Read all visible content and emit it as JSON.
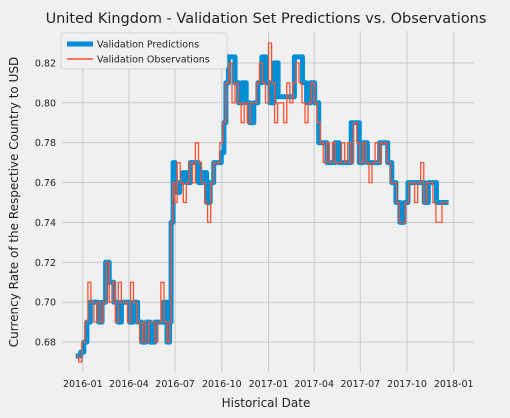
{
  "chart_data": {
    "type": "line",
    "title": "United Kingdom - Validation Set Predictions vs. Observations",
    "xlabel": "Historical Date",
    "ylabel": "Currency Rate of the Respective Country to USD",
    "xlim": [
      "2015-11-21",
      "2018-02-10"
    ],
    "ylim": [
      0.665,
      0.836
    ],
    "x_ticks": [
      "2016-01",
      "2016-04",
      "2016-07",
      "2016-10",
      "2017-01",
      "2017-04",
      "2017-07",
      "2017-10",
      "2018-01"
    ],
    "y_ticks": [
      0.68,
      0.7,
      0.72,
      0.74,
      0.76,
      0.78,
      0.8,
      0.82
    ],
    "grid": true,
    "legend": "top-left",
    "series": [
      {
        "name": "Validation Predictions",
        "color": "#008fd5",
        "x": [
          "2015-12-18",
          "2015-12-28",
          "2016-01-03",
          "2016-01-09",
          "2016-01-16",
          "2016-01-24",
          "2016-02-01",
          "2016-02-08",
          "2016-02-15",
          "2016-02-22",
          "2016-03-02",
          "2016-03-10",
          "2016-03-17",
          "2016-03-25",
          "2016-04-02",
          "2016-04-10",
          "2016-04-18",
          "2016-04-26",
          "2016-05-05",
          "2016-05-13",
          "2016-05-22",
          "2016-05-31",
          "2016-06-08",
          "2016-06-15",
          "2016-06-20",
          "2016-06-23",
          "2016-06-27",
          "2016-07-01",
          "2016-07-05",
          "2016-07-10",
          "2016-07-16",
          "2016-07-23",
          "2016-07-31",
          "2016-08-08",
          "2016-08-16",
          "2016-08-24",
          "2016-09-01",
          "2016-09-08",
          "2016-09-15",
          "2016-09-22",
          "2016-09-30",
          "2016-10-05",
          "2016-10-09",
          "2016-10-14",
          "2016-10-20",
          "2016-10-27",
          "2016-11-03",
          "2016-11-10",
          "2016-11-18",
          "2016-11-25",
          "2016-12-03",
          "2016-12-11",
          "2016-12-19",
          "2016-12-27",
          "2017-01-04",
          "2017-01-12",
          "2017-01-20",
          "2017-01-28",
          "2017-02-05",
          "2017-02-13",
          "2017-02-21",
          "2017-03-01",
          "2017-03-09",
          "2017-03-17",
          "2017-03-25",
          "2017-04-02",
          "2017-04-10",
          "2017-04-18",
          "2017-04-26",
          "2017-05-04",
          "2017-05-12",
          "2017-05-20",
          "2017-05-28",
          "2017-06-05",
          "2017-06-13",
          "2017-06-21",
          "2017-06-29",
          "2017-07-07",
          "2017-07-15",
          "2017-07-23",
          "2017-07-31",
          "2017-08-08",
          "2017-08-16",
          "2017-08-24",
          "2017-09-01",
          "2017-09-09",
          "2017-09-17",
          "2017-09-25",
          "2017-10-03",
          "2017-10-11",
          "2017-10-19",
          "2017-10-27",
          "2017-11-04",
          "2017-11-12",
          "2017-11-20",
          "2017-11-28",
          "2017-12-06",
          "2017-12-14",
          "2017-12-22"
        ],
        "y": [
          0.673,
          0.675,
          0.68,
          0.69,
          0.7,
          0.7,
          0.69,
          0.7,
          0.72,
          0.71,
          0.7,
          0.69,
          0.7,
          0.7,
          0.69,
          0.7,
          0.69,
          0.68,
          0.69,
          0.68,
          0.69,
          0.69,
          0.7,
          0.68,
          0.69,
          0.74,
          0.77,
          0.76,
          0.755,
          0.76,
          0.765,
          0.76,
          0.77,
          0.77,
          0.76,
          0.765,
          0.75,
          0.76,
          0.77,
          0.77,
          0.775,
          0.79,
          0.81,
          0.823,
          0.823,
          0.81,
          0.8,
          0.81,
          0.8,
          0.79,
          0.8,
          0.81,
          0.823,
          0.81,
          0.8,
          0.82,
          0.803,
          0.803,
          0.803,
          0.803,
          0.823,
          0.823,
          0.81,
          0.8,
          0.81,
          0.8,
          0.78,
          0.78,
          0.77,
          0.77,
          0.78,
          0.77,
          0.77,
          0.77,
          0.79,
          0.79,
          0.77,
          0.78,
          0.77,
          0.77,
          0.77,
          0.78,
          0.78,
          0.77,
          0.76,
          0.75,
          0.74,
          0.75,
          0.76,
          0.76,
          0.76,
          0.76,
          0.75,
          0.76,
          0.76,
          0.75,
          0.75,
          0.75,
          0.75
        ]
      },
      {
        "name": "Validation Observations",
        "color": "#fc4f30",
        "x": [
          "2015-12-18",
          "2015-12-24",
          "2015-12-30",
          "2016-01-05",
          "2016-01-11",
          "2016-01-17",
          "2016-01-23",
          "2016-01-29",
          "2016-02-04",
          "2016-02-10",
          "2016-02-16",
          "2016-02-22",
          "2016-02-28",
          "2016-03-05",
          "2016-03-11",
          "2016-03-17",
          "2016-03-23",
          "2016-03-29",
          "2016-04-04",
          "2016-04-10",
          "2016-04-16",
          "2016-04-22",
          "2016-04-28",
          "2016-05-04",
          "2016-05-10",
          "2016-05-16",
          "2016-05-22",
          "2016-05-28",
          "2016-06-03",
          "2016-06-09",
          "2016-06-15",
          "2016-06-20",
          "2016-06-23",
          "2016-06-26",
          "2016-06-30",
          "2016-07-05",
          "2016-07-11",
          "2016-07-17",
          "2016-07-23",
          "2016-07-29",
          "2016-08-04",
          "2016-08-10",
          "2016-08-16",
          "2016-08-22",
          "2016-08-28",
          "2016-09-03",
          "2016-09-09",
          "2016-09-15",
          "2016-09-21",
          "2016-09-27",
          "2016-10-03",
          "2016-10-09",
          "2016-10-15",
          "2016-10-21",
          "2016-10-27",
          "2016-11-02",
          "2016-11-08",
          "2016-11-14",
          "2016-11-20",
          "2016-11-26",
          "2016-12-02",
          "2016-12-08",
          "2016-12-14",
          "2016-12-20",
          "2016-12-26",
          "2017-01-01",
          "2017-01-07",
          "2017-01-13",
          "2017-01-19",
          "2017-01-25",
          "2017-01-31",
          "2017-02-06",
          "2017-02-12",
          "2017-02-18",
          "2017-02-24",
          "2017-03-02",
          "2017-03-08",
          "2017-03-14",
          "2017-03-20",
          "2017-03-26",
          "2017-04-01",
          "2017-04-07",
          "2017-04-13",
          "2017-04-19",
          "2017-04-25",
          "2017-05-01",
          "2017-05-07",
          "2017-05-13",
          "2017-05-19",
          "2017-05-25",
          "2017-05-31",
          "2017-06-06",
          "2017-06-12",
          "2017-06-18",
          "2017-06-24",
          "2017-06-30",
          "2017-07-06",
          "2017-07-12",
          "2017-07-18",
          "2017-07-24",
          "2017-07-30",
          "2017-08-05",
          "2017-08-11",
          "2017-08-17",
          "2017-08-23",
          "2017-08-29",
          "2017-09-04",
          "2017-09-10",
          "2017-09-16",
          "2017-09-22",
          "2017-09-28",
          "2017-10-04",
          "2017-10-10",
          "2017-10-16",
          "2017-10-22",
          "2017-10-28",
          "2017-11-03",
          "2017-11-09",
          "2017-11-15",
          "2017-11-21",
          "2017-11-27",
          "2017-12-03",
          "2017-12-09",
          "2017-12-15",
          "2017-12-21"
        ],
        "y": [
          0.673,
          0.67,
          0.68,
          0.69,
          0.71,
          0.7,
          0.69,
          0.7,
          0.69,
          0.7,
          0.72,
          0.7,
          0.71,
          0.69,
          0.71,
          0.7,
          0.7,
          0.69,
          0.71,
          0.7,
          0.69,
          0.68,
          0.69,
          0.68,
          0.69,
          0.69,
          0.68,
          0.69,
          0.71,
          0.69,
          0.68,
          0.69,
          0.74,
          0.76,
          0.75,
          0.77,
          0.76,
          0.75,
          0.76,
          0.77,
          0.76,
          0.78,
          0.77,
          0.76,
          0.75,
          0.74,
          0.76,
          0.77,
          0.77,
          0.78,
          0.79,
          0.81,
          0.82,
          0.8,
          0.81,
          0.8,
          0.79,
          0.8,
          0.79,
          0.8,
          0.8,
          0.81,
          0.82,
          0.81,
          0.8,
          0.83,
          0.81,
          0.79,
          0.8,
          0.8,
          0.79,
          0.81,
          0.8,
          0.81,
          0.82,
          0.81,
          0.8,
          0.79,
          0.8,
          0.81,
          0.8,
          0.79,
          0.78,
          0.77,
          0.78,
          0.77,
          0.78,
          0.77,
          0.77,
          0.78,
          0.77,
          0.78,
          0.77,
          0.79,
          0.78,
          0.77,
          0.78,
          0.77,
          0.76,
          0.77,
          0.78,
          0.77,
          0.78,
          0.78,
          0.77,
          0.76,
          0.76,
          0.75,
          0.74,
          0.74,
          0.75,
          0.76,
          0.76,
          0.75,
          0.76,
          0.77,
          0.75,
          0.76,
          0.76,
          0.75,
          0.74,
          0.74,
          0.75,
          0.75,
          0.75
        ]
      }
    ]
  }
}
